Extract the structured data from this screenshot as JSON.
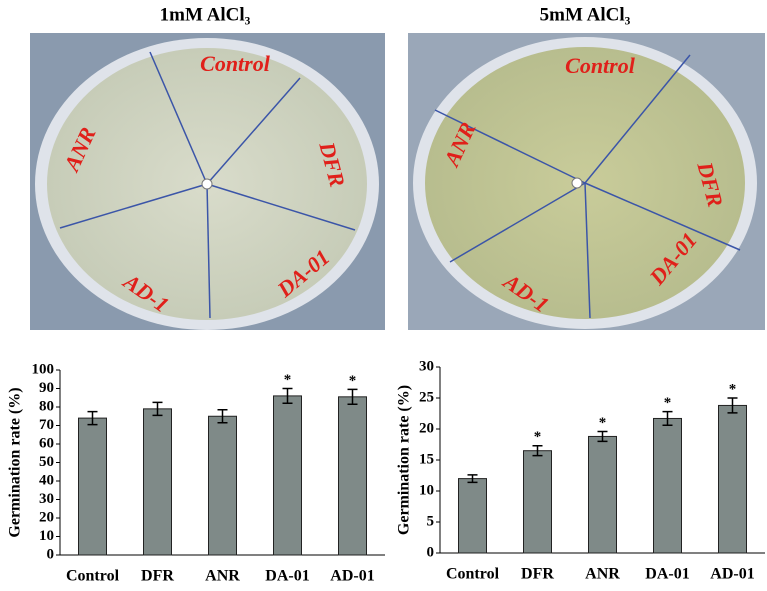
{
  "panels": [
    {
      "title": "1mM AlCl₃",
      "plate_labels": [
        "Control",
        "DFR",
        "DA-01",
        "AD-1",
        "ANR"
      ]
    },
    {
      "title": "5mM AlCl₃",
      "plate_labels": [
        "Control",
        "DFR",
        "DA-01",
        "AD-1",
        "ANR"
      ]
    }
  ],
  "chart_data": [
    {
      "type": "bar",
      "y_label": "Germination rate (%)",
      "categories": [
        "Control",
        "DFR",
        "ANR",
        "DA-01",
        "AD-01"
      ],
      "values": [
        74,
        79,
        75,
        86,
        85.5
      ],
      "errors": [
        3.5,
        3.5,
        3.5,
        4,
        4
      ],
      "annotations": [
        null,
        null,
        null,
        "*",
        "*"
      ],
      "color": "#7f8a88",
      "ylim": [
        0,
        100
      ],
      "yticks": [
        0,
        10,
        20,
        30,
        40,
        50,
        60,
        70,
        80,
        90,
        100
      ]
    },
    {
      "type": "bar",
      "y_label": "Germination rate (%)",
      "categories": [
        "Control",
        "DFR",
        "ANR",
        "DA-01",
        "AD-01"
      ],
      "values": [
        12,
        16.5,
        18.8,
        21.7,
        23.8
      ],
      "errors": [
        0.6,
        0.8,
        0.8,
        1.1,
        1.2
      ],
      "annotations": [
        null,
        "*",
        "*",
        "*",
        "*"
      ],
      "color": "#7f8a88",
      "ylim": [
        0,
        30
      ],
      "yticks": [
        0,
        5,
        10,
        15,
        20,
        25,
        30
      ]
    }
  ]
}
